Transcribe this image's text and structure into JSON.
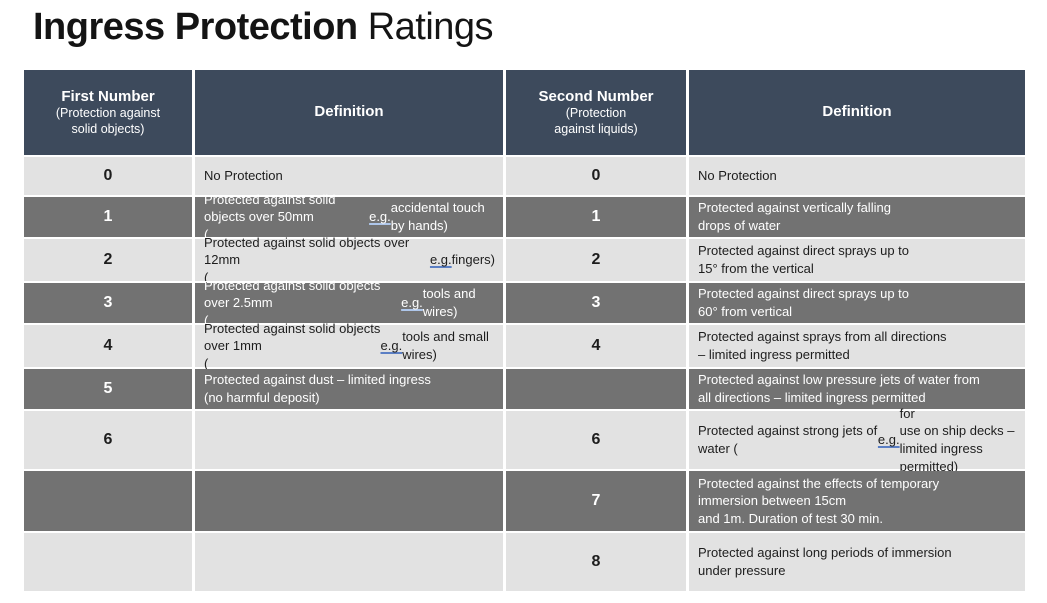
{
  "title": {
    "bold": "Ingress Protection",
    "regular": " Ratings"
  },
  "colors": {
    "header_bg": "#3d4a5c",
    "row_dark": "#727272",
    "row_light": "#e2e2e2",
    "eg_underline_light_row": "#5b7fc4",
    "eg_underline_dark_row": "#aec6ea"
  },
  "table": {
    "headers": [
      {
        "label": "First Number",
        "sublabel": "(Protection against\nsolid objects)"
      },
      {
        "label": "Definition",
        "sublabel": ""
      },
      {
        "label": "Second Number",
        "sublabel": "(Protection\nagainst liquids)"
      },
      {
        "label": "Definition",
        "sublabel": ""
      }
    ],
    "rows": [
      {
        "first_number": "0",
        "first_definition": "No Protection",
        "second_number": "0",
        "second_definition": "No Protection"
      },
      {
        "first_number": "1",
        "first_definition": "Protected against solid objects over 50mm\n(e.g. accidental touch by hands)",
        "second_number": "1",
        "second_definition": "Protected against vertically falling\ndrops of water"
      },
      {
        "first_number": "2",
        "first_definition": "Protected against solid objects over 12mm\n(e.g. fingers)",
        "second_number": "2",
        "second_definition": "Protected against direct sprays up to\n15° from the vertical"
      },
      {
        "first_number": "3",
        "first_definition": "Protected against solid objects over 2.5mm\n(e.g. tools and wires)",
        "second_number": "3",
        "second_definition": "Protected against direct sprays up to\n60° from vertical"
      },
      {
        "first_number": "4",
        "first_definition": "Protected against solid objects over 1mm\n(e.g. tools and small wires)",
        "second_number": "4",
        "second_definition": "Protected against sprays from all directions\n– limited ingress permitted"
      },
      {
        "first_number": "5",
        "first_definition": "Protected against dust – limited ingress\n(no harmful deposit)",
        "second_number": "",
        "second_definition": "Protected against low pressure jets of water from\nall directions – limited ingress permitted"
      },
      {
        "first_number": "6",
        "first_definition": "",
        "second_number": "6",
        "second_definition": "Protected against strong jets of water (e.g. for\nuse on ship decks –\nlimited ingress permitted)"
      },
      {
        "first_number": "",
        "first_definition": "",
        "second_number": "7",
        "second_definition": "Protected against the effects of temporary\nimmersion between 15cm\nand 1m. Duration of test 30 min."
      },
      {
        "first_number": "",
        "first_definition": "",
        "second_number": "8",
        "second_definition": "Protected against long periods of immersion\nunder pressure"
      }
    ]
  }
}
